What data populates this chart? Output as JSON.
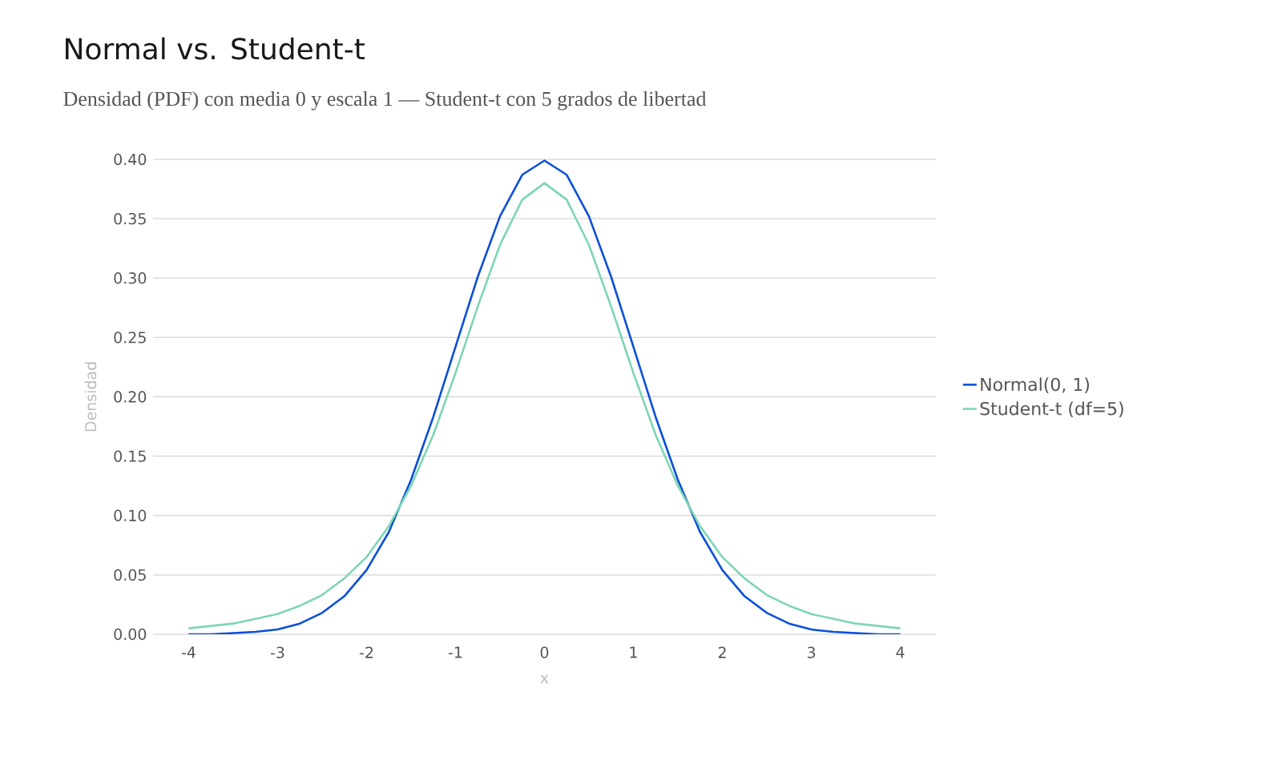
{
  "chart_data": {
    "type": "line",
    "title": "Normal vs. Student-t",
    "subtitle": "Densidad (PDF) con media 0 y escala 1 — Student-t con 5 grados de libertad",
    "xlabel": "x",
    "ylabel": "Densidad",
    "x": [
      -4,
      -3.75,
      -3.5,
      -3.25,
      -3,
      -2.75,
      -2.5,
      -2.25,
      -2,
      -1.75,
      -1.5,
      -1.25,
      -1,
      -0.75,
      -0.5,
      -0.25,
      0,
      0.25,
      0.5,
      0.75,
      1,
      1.25,
      1.5,
      1.75,
      2,
      2.25,
      2.5,
      2.75,
      3,
      3.25,
      3.5,
      3.75,
      4
    ],
    "series": [
      {
        "name": "Normal(0, 1)",
        "color": "#0a4fd8",
        "values": [
          0.0,
          0.0,
          0.001,
          0.002,
          0.004,
          0.009,
          0.018,
          0.032,
          0.054,
          0.086,
          0.13,
          0.183,
          0.242,
          0.301,
          0.352,
          0.387,
          0.399,
          0.387,
          0.352,
          0.301,
          0.242,
          0.183,
          0.13,
          0.086,
          0.054,
          0.032,
          0.018,
          0.009,
          0.004,
          0.002,
          0.001,
          0.0,
          0.0
        ]
      },
      {
        "name": "Student-t (df=5)",
        "color": "#7dd6b2",
        "values": [
          0.005,
          0.007,
          0.009,
          0.013,
          0.017,
          0.024,
          0.033,
          0.047,
          0.065,
          0.091,
          0.125,
          0.168,
          0.22,
          0.276,
          0.328,
          0.366,
          0.38,
          0.366,
          0.328,
          0.276,
          0.22,
          0.168,
          0.125,
          0.091,
          0.065,
          0.047,
          0.033,
          0.024,
          0.017,
          0.013,
          0.009,
          0.007,
          0.005
        ]
      }
    ],
    "xlim": [
      -4.4,
      4.4
    ],
    "ylim": [
      0,
      0.4
    ],
    "xticks": [
      -4,
      -3,
      -2,
      -1,
      0,
      1,
      2,
      3,
      4
    ],
    "yticks": [
      {
        "value": 0,
        "label": "0.00"
      },
      {
        "value": 0.05,
        "label": "0.05"
      },
      {
        "value": 0.1,
        "label": "0.10"
      },
      {
        "value": 0.15,
        "label": "0.15"
      },
      {
        "value": 0.2,
        "label": "0.20"
      },
      {
        "value": 0.25,
        "label": "0.25"
      },
      {
        "value": 0.3,
        "label": "0.30"
      },
      {
        "value": 0.35,
        "label": "0.35"
      },
      {
        "value": 0.4,
        "label": "0.40"
      }
    ],
    "grid": "y",
    "legend": "right",
    "marker": "none",
    "line_style": "solid"
  }
}
